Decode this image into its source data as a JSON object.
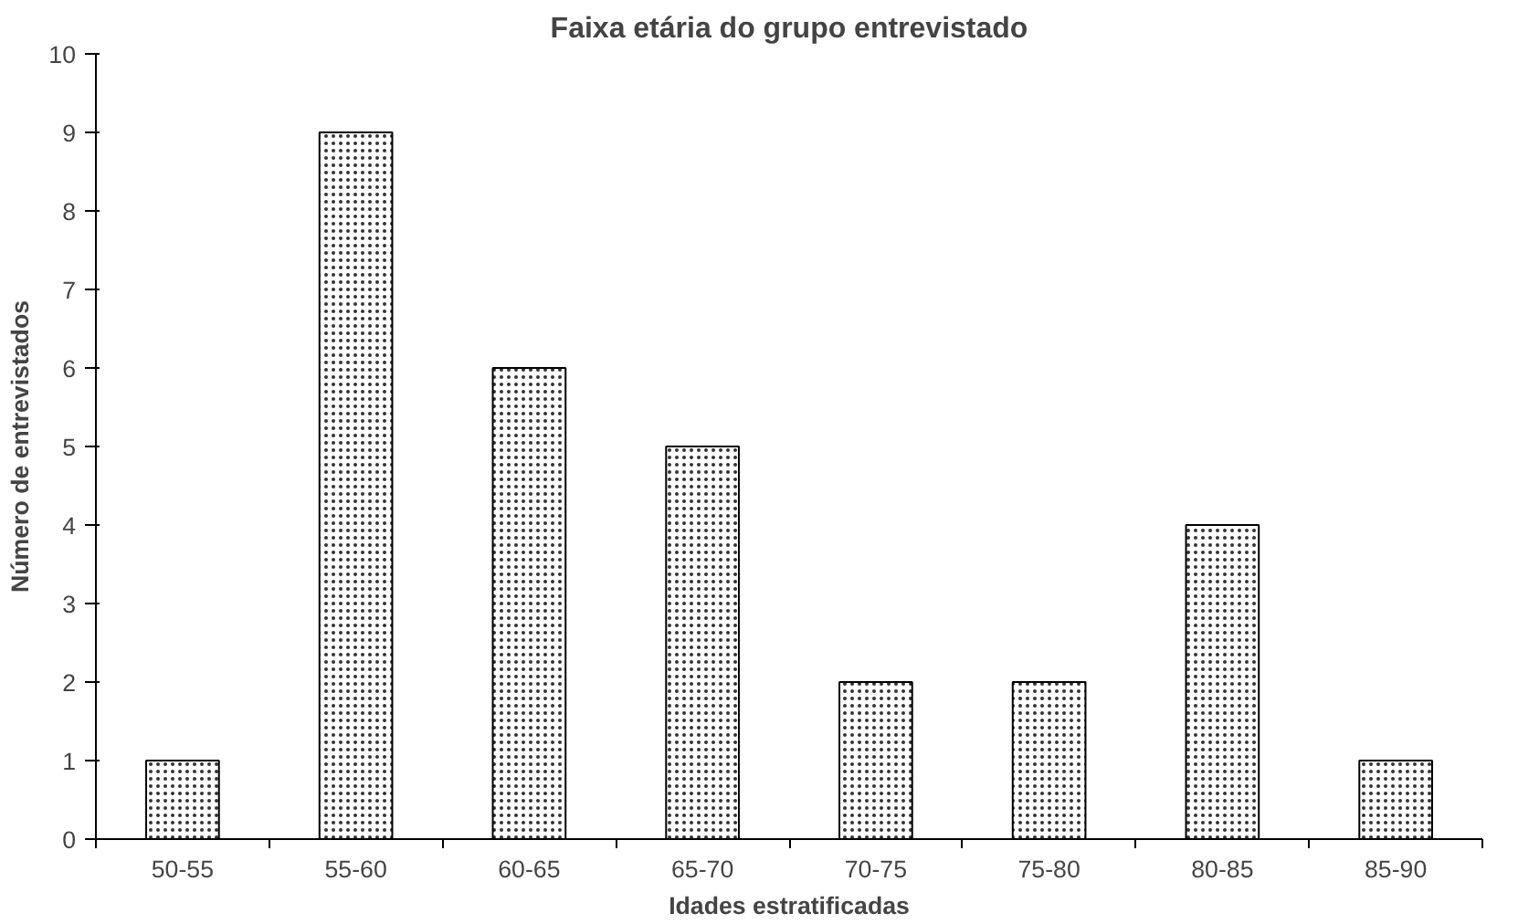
{
  "chart_data": {
    "type": "bar",
    "title": "Faixa etária do grupo entrevistado",
    "xlabel": "Idades estratificadas",
    "ylabel": "Número de entrevistados",
    "categories": [
      "50-55",
      "55-60",
      "60-65",
      "65-70",
      "70-75",
      "75-80",
      "80-85",
      "85-90"
    ],
    "values": [
      1,
      9,
      6,
      5,
      2,
      2,
      4,
      1
    ],
    "color": "#ffffff",
    "ylim": [
      0,
      10
    ],
    "yticks": [
      0,
      1,
      2,
      3,
      4,
      5,
      6,
      7,
      8,
      9,
      10
    ],
    "grid": false
  }
}
